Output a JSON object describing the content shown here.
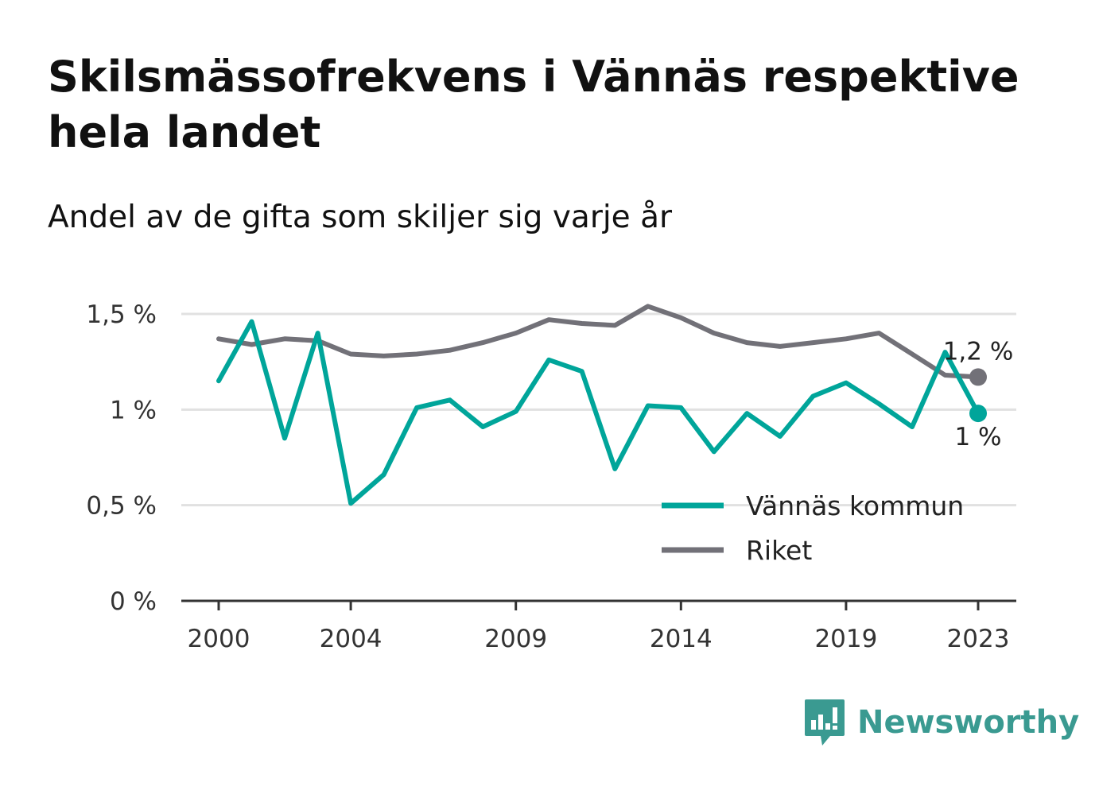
{
  "title": "Skilsmässofrekvens i Vännäs respektive hela landet",
  "subtitle": "Andel av de gifta som skiljer sig varje år",
  "colors": {
    "vannas": "#00a59a",
    "riket": "#727178",
    "grid": "#e1e1e1",
    "axis": "#333333",
    "brand": "#3a9a91"
  },
  "brand": {
    "name": "Newsworthy",
    "icon": "newsworthy-logo-icon"
  },
  "chart_data": {
    "type": "line",
    "title": "Skilsmässofrekvens i Vännäs respektive hela landet",
    "subtitle": "Andel av de gifta som skiljer sig varje år",
    "xlabel": "",
    "ylabel": "",
    "x": [
      2000,
      2001,
      2002,
      2003,
      2004,
      2005,
      2006,
      2007,
      2008,
      2009,
      2010,
      2011,
      2012,
      2013,
      2014,
      2015,
      2016,
      2017,
      2018,
      2019,
      2020,
      2021,
      2022,
      2023
    ],
    "x_ticks": [
      2000,
      2004,
      2009,
      2014,
      2019,
      2023
    ],
    "x_tick_labels": [
      "2000",
      "2004",
      "2009",
      "2014",
      "2019",
      "2023"
    ],
    "y_ticks": [
      0,
      0.5,
      1,
      1.5
    ],
    "y_tick_labels": [
      "0 %",
      "0,5 %",
      "1 %",
      "1,5 %"
    ],
    "ylim": [
      0,
      1.5
    ],
    "grid": true,
    "legend_position": "bottom-right",
    "series": [
      {
        "key": "vannas",
        "name": "Vännäs kommun",
        "values": [
          1.15,
          1.46,
          0.85,
          1.4,
          0.51,
          0.66,
          1.01,
          1.05,
          0.91,
          0.99,
          1.26,
          1.2,
          0.69,
          1.02,
          1.01,
          0.78,
          0.98,
          0.86,
          1.07,
          1.14,
          1.03,
          0.91,
          1.3,
          0.98
        ],
        "end_label": "1 %"
      },
      {
        "key": "riket",
        "name": "Riket",
        "values": [
          1.37,
          1.34,
          1.37,
          1.36,
          1.29,
          1.28,
          1.29,
          1.31,
          1.35,
          1.4,
          1.47,
          1.45,
          1.44,
          1.54,
          1.48,
          1.4,
          1.35,
          1.33,
          1.35,
          1.37,
          1.4,
          1.29,
          1.18,
          1.17
        ],
        "end_label": "1,2 %"
      }
    ]
  }
}
